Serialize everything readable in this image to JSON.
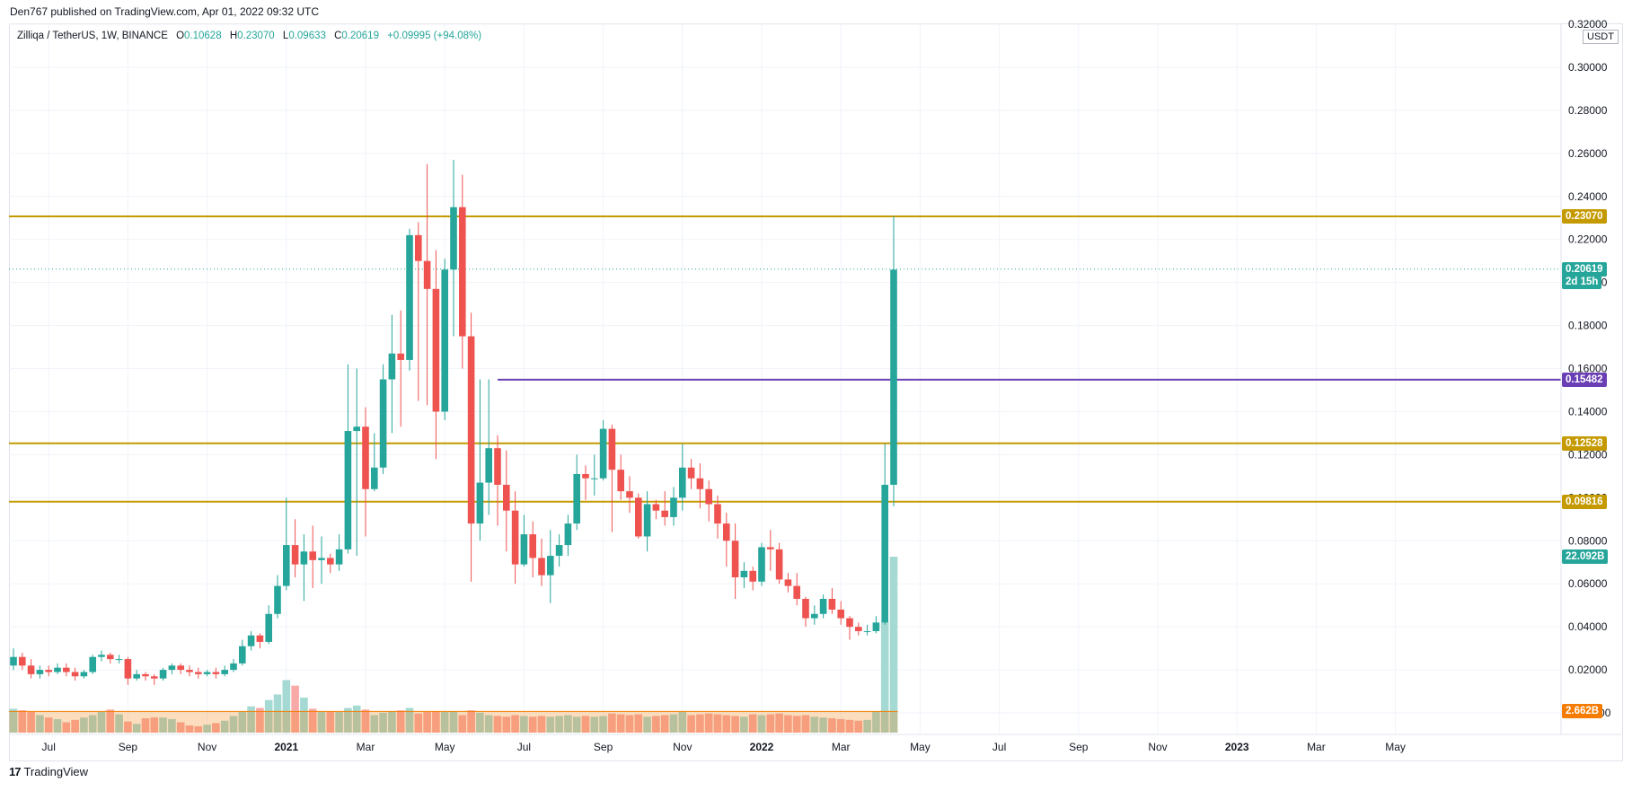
{
  "header": {
    "published_text": "Den767 published on TradingView.com, Apr 01, 2022 09:32 UTC"
  },
  "legend": {
    "symbol": "Zilliqa / TetherUS, 1W, BINANCE",
    "o_label": "O",
    "o_value": "0.10628",
    "h_label": "H",
    "h_value": "0.23070",
    "l_label": "L",
    "l_value": "0.09633",
    "c_label": "C",
    "c_value": "0.20619",
    "change": "+0.09995 (+94.08%)"
  },
  "currency": "USDT",
  "footer": {
    "logo": "17",
    "brand": "TradingView"
  },
  "colors": {
    "up": "#26a69a",
    "down": "#ef5350",
    "level": "#c49a00",
    "purple": "#6a3fb5",
    "grid": "#f0f3fa"
  },
  "chart_data": {
    "type": "candlestick",
    "title": "Zilliqa / TetherUS, 1W, BINANCE",
    "ylim": [
      -0.01,
      0.32
    ],
    "y_ticks": [
      "-0.00000",
      "0.02000",
      "0.04000",
      "0.06000",
      "0.08000",
      "0.10000",
      "0.12000",
      "0.14000",
      "0.16000",
      "0.18000",
      "0.20000",
      "0.22000",
      "0.24000",
      "0.26000",
      "0.28000",
      "0.30000",
      "0.32000"
    ],
    "y_tick_values": [
      0,
      0.02,
      0.04,
      0.06,
      0.08,
      0.1,
      0.12,
      0.14,
      0.16,
      0.18,
      0.2,
      0.22,
      0.24,
      0.26,
      0.28,
      0.3,
      0.32
    ],
    "x_labels": [
      {
        "label": "Jul",
        "i": 4
      },
      {
        "label": "Sep",
        "i": 13
      },
      {
        "label": "Nov",
        "i": 22
      },
      {
        "label": "2021",
        "i": 31
      },
      {
        "label": "Mar",
        "i": 40
      },
      {
        "label": "May",
        "i": 49
      },
      {
        "label": "Jul",
        "i": 58
      },
      {
        "label": "Sep",
        "i": 67
      },
      {
        "label": "Nov",
        "i": 76
      },
      {
        "label": "2022",
        "i": 85
      },
      {
        "label": "Mar",
        "i": 94
      },
      {
        "label": "May",
        "i": 103
      },
      {
        "label": "Jul",
        "i": 112
      },
      {
        "label": "Sep",
        "i": 121
      },
      {
        "label": "Nov",
        "i": 130
      },
      {
        "label": "2023",
        "i": 139
      },
      {
        "label": "Mar",
        "i": 148
      },
      {
        "label": "May",
        "i": 157
      }
    ],
    "candles": [
      [
        0.022,
        0.026,
        0.03,
        0.02
      ],
      [
        0.026,
        0.022,
        0.028,
        0.02
      ],
      [
        0.022,
        0.018,
        0.025,
        0.016
      ],
      [
        0.018,
        0.02,
        0.022,
        0.016
      ],
      [
        0.02,
        0.019,
        0.022,
        0.017
      ],
      [
        0.019,
        0.021,
        0.023,
        0.018
      ],
      [
        0.021,
        0.019,
        0.023,
        0.017
      ],
      [
        0.019,
        0.017,
        0.021,
        0.015
      ],
      [
        0.017,
        0.019,
        0.02,
        0.016
      ],
      [
        0.019,
        0.026,
        0.027,
        0.018
      ],
      [
        0.026,
        0.027,
        0.029,
        0.024
      ],
      [
        0.027,
        0.025,
        0.028,
        0.023
      ],
      [
        0.025,
        0.025,
        0.027,
        0.023
      ],
      [
        0.025,
        0.016,
        0.026,
        0.013
      ],
      [
        0.016,
        0.018,
        0.02,
        0.015
      ],
      [
        0.018,
        0.017,
        0.019,
        0.015
      ],
      [
        0.017,
        0.016,
        0.018,
        0.013
      ],
      [
        0.016,
        0.02,
        0.021,
        0.015
      ],
      [
        0.02,
        0.022,
        0.023,
        0.018
      ],
      [
        0.022,
        0.02,
        0.023,
        0.018
      ],
      [
        0.02,
        0.019,
        0.022,
        0.017
      ],
      [
        0.019,
        0.018,
        0.021,
        0.016
      ],
      [
        0.018,
        0.019,
        0.02,
        0.017
      ],
      [
        0.019,
        0.018,
        0.021,
        0.016
      ],
      [
        0.018,
        0.02,
        0.022,
        0.017
      ],
      [
        0.02,
        0.023,
        0.025,
        0.019
      ],
      [
        0.023,
        0.031,
        0.034,
        0.022
      ],
      [
        0.031,
        0.036,
        0.038,
        0.029
      ],
      [
        0.036,
        0.033,
        0.037,
        0.03
      ],
      [
        0.033,
        0.046,
        0.05,
        0.032
      ],
      [
        0.046,
        0.059,
        0.064,
        0.044
      ],
      [
        0.059,
        0.078,
        0.1,
        0.057
      ],
      [
        0.078,
        0.069,
        0.09,
        0.063
      ],
      [
        0.069,
        0.075,
        0.083,
        0.052
      ],
      [
        0.075,
        0.071,
        0.087,
        0.058
      ],
      [
        0.071,
        0.072,
        0.082,
        0.06
      ],
      [
        0.072,
        0.069,
        0.074,
        0.065
      ],
      [
        0.069,
        0.076,
        0.083,
        0.066
      ],
      [
        0.076,
        0.131,
        0.162,
        0.074
      ],
      [
        0.131,
        0.133,
        0.16,
        0.073
      ],
      [
        0.133,
        0.104,
        0.142,
        0.082
      ],
      [
        0.104,
        0.114,
        0.13,
        0.103
      ],
      [
        0.114,
        0.155,
        0.162,
        0.111
      ],
      [
        0.155,
        0.167,
        0.185,
        0.13
      ],
      [
        0.167,
        0.164,
        0.187,
        0.133
      ],
      [
        0.164,
        0.222,
        0.225,
        0.159
      ],
      [
        0.222,
        0.21,
        0.228,
        0.145
      ],
      [
        0.21,
        0.197,
        0.255,
        0.143
      ],
      [
        0.197,
        0.14,
        0.215,
        0.118
      ],
      [
        0.14,
        0.206,
        0.211,
        0.136
      ],
      [
        0.206,
        0.235,
        0.257,
        0.175
      ],
      [
        0.235,
        0.175,
        0.25,
        0.16
      ],
      [
        0.175,
        0.088,
        0.186,
        0.061
      ],
      [
        0.088,
        0.107,
        0.155,
        0.08
      ],
      [
        0.107,
        0.123,
        0.155,
        0.092
      ],
      [
        0.123,
        0.106,
        0.129,
        0.087
      ],
      [
        0.106,
        0.094,
        0.122,
        0.075
      ],
      [
        0.094,
        0.069,
        0.103,
        0.06
      ],
      [
        0.069,
        0.083,
        0.092,
        0.068
      ],
      [
        0.083,
        0.072,
        0.089,
        0.063
      ],
      [
        0.072,
        0.064,
        0.081,
        0.059
      ],
      [
        0.064,
        0.073,
        0.085,
        0.051
      ],
      [
        0.073,
        0.078,
        0.083,
        0.068
      ],
      [
        0.078,
        0.088,
        0.092,
        0.073
      ],
      [
        0.088,
        0.111,
        0.12,
        0.085
      ],
      [
        0.111,
        0.109,
        0.115,
        0.099
      ],
      [
        0.109,
        0.109,
        0.12,
        0.101
      ],
      [
        0.109,
        0.132,
        0.136,
        0.108
      ],
      [
        0.132,
        0.113,
        0.134,
        0.084
      ],
      [
        0.113,
        0.103,
        0.12,
        0.099
      ],
      [
        0.103,
        0.1,
        0.11,
        0.093
      ],
      [
        0.1,
        0.082,
        0.102,
        0.081
      ],
      [
        0.082,
        0.097,
        0.103,
        0.075
      ],
      [
        0.097,
        0.094,
        0.099,
        0.09
      ],
      [
        0.094,
        0.091,
        0.103,
        0.087
      ],
      [
        0.091,
        0.1,
        0.105,
        0.087
      ],
      [
        0.1,
        0.114,
        0.125,
        0.094
      ],
      [
        0.114,
        0.109,
        0.118,
        0.104
      ],
      [
        0.109,
        0.104,
        0.116,
        0.095
      ],
      [
        0.104,
        0.097,
        0.108,
        0.089
      ],
      [
        0.097,
        0.088,
        0.101,
        0.081
      ],
      [
        0.088,
        0.08,
        0.093,
        0.068
      ],
      [
        0.08,
        0.063,
        0.088,
        0.053
      ],
      [
        0.063,
        0.066,
        0.07,
        0.058
      ],
      [
        0.066,
        0.061,
        0.068,
        0.057
      ],
      [
        0.061,
        0.077,
        0.079,
        0.059
      ],
      [
        0.077,
        0.076,
        0.085,
        0.066
      ],
      [
        0.076,
        0.062,
        0.079,
        0.06
      ],
      [
        0.062,
        0.059,
        0.065,
        0.056
      ],
      [
        0.059,
        0.053,
        0.065,
        0.05
      ],
      [
        0.053,
        0.044,
        0.054,
        0.04
      ],
      [
        0.044,
        0.046,
        0.05,
        0.041
      ],
      [
        0.046,
        0.053,
        0.055,
        0.044
      ],
      [
        0.053,
        0.048,
        0.058,
        0.046
      ],
      [
        0.048,
        0.044,
        0.052,
        0.041
      ],
      [
        0.044,
        0.04,
        0.045,
        0.034
      ],
      [
        0.04,
        0.038,
        0.042,
        0.036
      ],
      [
        0.038,
        0.038,
        0.041,
        0.036
      ],
      [
        0.038,
        0.042,
        0.045,
        0.037
      ],
      [
        0.042,
        0.106,
        0.125,
        0.041
      ],
      [
        0.106,
        0.206,
        0.231,
        0.096
      ]
    ],
    "volume_scale": 22.1,
    "volumes": [
      3.0,
      2.8,
      2.6,
      2.2,
      1.9,
      1.7,
      1.3,
      1.6,
      1.9,
      2.2,
      2.6,
      2.9,
      2.3,
      1.4,
      1.1,
      1.8,
      1.9,
      1.9,
      1.7,
      1.3,
      0.9,
      0.8,
      1.0,
      1.2,
      1.5,
      2.1,
      2.6,
      3.3,
      3.1,
      4.1,
      4.8,
      6.6,
      5.9,
      4.4,
      3.0,
      2.6,
      2.7,
      2.6,
      3.1,
      3.4,
      2.9,
      2.2,
      2.5,
      2.7,
      2.8,
      3.1,
      2.4,
      2.6,
      2.7,
      2.6,
      2.7,
      2.2,
      2.8,
      2.5,
      2.2,
      2.1,
      2.0,
      2.2,
      2.1,
      2.0,
      2.1,
      2.0,
      2.1,
      2.2,
      2.0,
      2.1,
      2.0,
      2.1,
      2.4,
      2.3,
      2.2,
      2.3,
      2.0,
      2.1,
      2.2,
      2.3,
      2.6,
      2.2,
      2.3,
      2.4,
      2.3,
      2.2,
      2.1,
      2.0,
      2.3,
      2.2,
      2.3,
      2.4,
      2.2,
      2.1,
      2.2,
      2.0,
      1.9,
      1.8,
      1.7,
      1.6,
      1.5,
      1.6,
      2.7,
      13.9,
      22.09
    ],
    "volume_ma": 2.662,
    "horizontal_levels": [
      {
        "value": 0.2307,
        "label": "0.23070",
        "color": "level"
      },
      {
        "value": 0.12528,
        "label": "0.12528",
        "color": "level"
      },
      {
        "value": 0.09816,
        "label": "0.09816",
        "color": "level"
      }
    ],
    "ray": {
      "value": 0.15482,
      "label": "0.15482",
      "start_index": 55,
      "color": "purple"
    },
    "last_price": {
      "value": 0.20619,
      "label": "0.20619",
      "countdown": "2d 15h"
    },
    "volume_label": "22.092B",
    "volume_ma_label": "2.662B"
  }
}
